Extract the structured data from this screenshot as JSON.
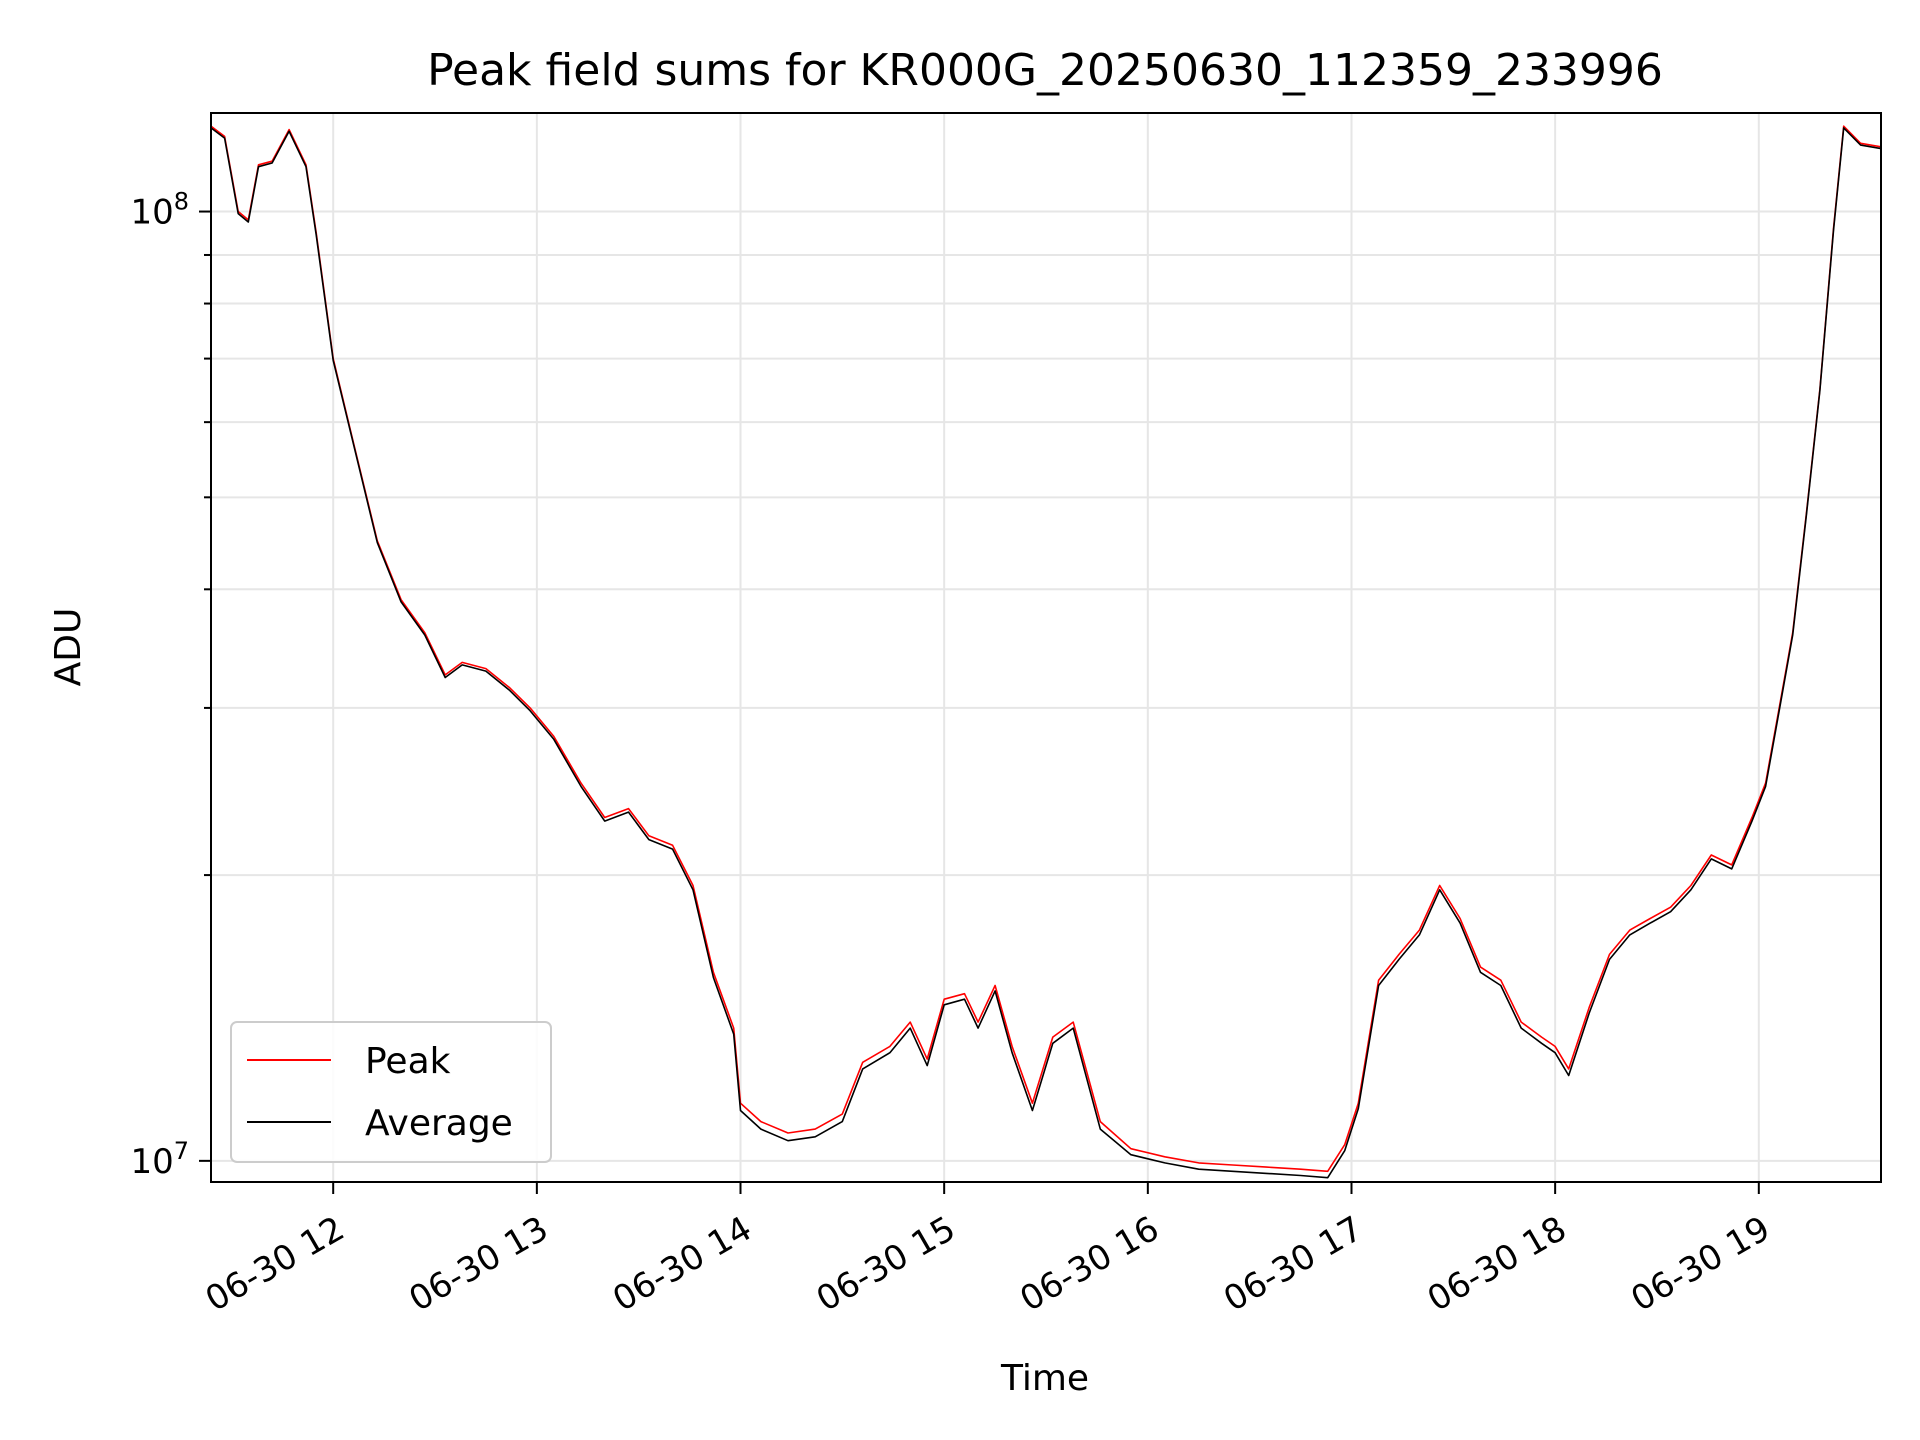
{
  "chart_data": {
    "type": "line",
    "title": "Peak field sums for KR000G_20250630_112359_233996",
    "xlabel": "Time",
    "ylabel": "ADU",
    "y_scale": "log",
    "ylim": [
      9500000,
      127000000
    ],
    "xlim": [
      "2025-06-30 11:24",
      "2025-06-30 19:36"
    ],
    "x_ticks": [
      "06-30 12",
      "06-30 13",
      "06-30 14",
      "06-30 15",
      "06-30 16",
      "06-30 17",
      "06-30 18",
      "06-30 19"
    ],
    "y_ticks": [
      {
        "value": 10000000,
        "base": "10",
        "exp": "7"
      },
      {
        "value": 100000000,
        "base": "10",
        "exp": "8"
      }
    ],
    "grid": true,
    "legend": {
      "position": "bottom-left",
      "entries": [
        "Peak",
        "Average"
      ]
    },
    "series": [
      {
        "name": "Peak",
        "color": "#ff0000",
        "points": [
          [
            "11:24",
            123000000
          ],
          [
            "11:28",
            120000000
          ],
          [
            "11:32",
            100000000
          ],
          [
            "11:35",
            98000000
          ],
          [
            "11:38",
            112000000
          ],
          [
            "11:42",
            113000000
          ],
          [
            "11:47",
            122000000
          ],
          [
            "11:52",
            112000000
          ],
          [
            "11:55",
            95000000
          ],
          [
            "12:00",
            70000000
          ],
          [
            "12:06",
            57000000
          ],
          [
            "12:13",
            45000000
          ],
          [
            "12:20",
            39000000
          ],
          [
            "12:27",
            36000000
          ],
          [
            "12:33",
            32500000
          ],
          [
            "12:38",
            33500000
          ],
          [
            "12:45",
            33000000
          ],
          [
            "12:52",
            31500000
          ],
          [
            "12:58",
            30000000
          ],
          [
            "13:05",
            28000000
          ],
          [
            "13:13",
            25000000
          ],
          [
            "13:20",
            23000000
          ],
          [
            "13:27",
            23500000
          ],
          [
            "13:33",
            22000000
          ],
          [
            "13:40",
            21500000
          ],
          [
            "13:46",
            19500000
          ],
          [
            "13:52",
            15800000
          ],
          [
            "13:58",
            13800000
          ],
          [
            "14:00",
            11500000
          ],
          [
            "14:06",
            11000000
          ],
          [
            "14:14",
            10700000
          ],
          [
            "14:22",
            10800000
          ],
          [
            "14:30",
            11200000
          ],
          [
            "14:36",
            12700000
          ],
          [
            "14:44",
            13200000
          ],
          [
            "14:50",
            14000000
          ],
          [
            "14:55",
            12800000
          ],
          [
            "15:00",
            14800000
          ],
          [
            "15:06",
            15000000
          ],
          [
            "15:10",
            14000000
          ],
          [
            "15:15",
            15300000
          ],
          [
            "15:20",
            13200000
          ],
          [
            "15:26",
            11500000
          ],
          [
            "15:32",
            13500000
          ],
          [
            "15:38",
            14000000
          ],
          [
            "15:46",
            11000000
          ],
          [
            "15:55",
            10300000
          ],
          [
            "16:05",
            10100000
          ],
          [
            "16:15",
            9950000
          ],
          [
            "16:25",
            9900000
          ],
          [
            "16:35",
            9850000
          ],
          [
            "16:45",
            9800000
          ],
          [
            "16:53",
            9750000
          ],
          [
            "16:58",
            10400000
          ],
          [
            "17:02",
            11500000
          ],
          [
            "17:08",
            15500000
          ],
          [
            "17:14",
            16500000
          ],
          [
            "17:20",
            17500000
          ],
          [
            "17:26",
            19500000
          ],
          [
            "17:32",
            18000000
          ],
          [
            "17:38",
            16000000
          ],
          [
            "17:44",
            15500000
          ],
          [
            "17:50",
            14000000
          ],
          [
            "17:56",
            13500000
          ],
          [
            "18:00",
            13200000
          ],
          [
            "18:04",
            12500000
          ],
          [
            "18:10",
            14500000
          ],
          [
            "18:16",
            16500000
          ],
          [
            "18:22",
            17500000
          ],
          [
            "18:28",
            18000000
          ],
          [
            "18:34",
            18500000
          ],
          [
            "18:40",
            19500000
          ],
          [
            "18:46",
            21000000
          ],
          [
            "18:52",
            20500000
          ],
          [
            "18:58",
            23000000
          ],
          [
            "19:02",
            25000000
          ],
          [
            "19:06",
            30000000
          ],
          [
            "19:10",
            36000000
          ],
          [
            "19:14",
            48000000
          ],
          [
            "19:18",
            65000000
          ],
          [
            "19:22",
            96000000
          ],
          [
            "19:25",
            123000000
          ],
          [
            "19:30",
            118000000
          ],
          [
            "19:36",
            117000000
          ]
        ]
      },
      {
        "name": "Average",
        "color": "#000000",
        "points": [
          [
            "11:24",
            122500000
          ],
          [
            "11:28",
            119500000
          ],
          [
            "11:32",
            99500000
          ],
          [
            "11:35",
            97500000
          ],
          [
            "11:38",
            111500000
          ],
          [
            "11:42",
            112500000
          ],
          [
            "11:47",
            121500000
          ],
          [
            "11:52",
            111500000
          ],
          [
            "11:55",
            94500000
          ],
          [
            "12:00",
            69700000
          ],
          [
            "12:06",
            56800000
          ],
          [
            "12:13",
            44800000
          ],
          [
            "12:20",
            38800000
          ],
          [
            "12:27",
            35800000
          ],
          [
            "12:33",
            32300000
          ],
          [
            "12:38",
            33300000
          ],
          [
            "12:45",
            32800000
          ],
          [
            "12:52",
            31300000
          ],
          [
            "12:58",
            29800000
          ],
          [
            "13:05",
            27800000
          ],
          [
            "13:13",
            24800000
          ],
          [
            "13:20",
            22800000
          ],
          [
            "13:27",
            23300000
          ],
          [
            "13:33",
            21800000
          ],
          [
            "13:40",
            21300000
          ],
          [
            "13:46",
            19300000
          ],
          [
            "13:52",
            15600000
          ],
          [
            "13:58",
            13600000
          ],
          [
            "14:00",
            11300000
          ],
          [
            "14:06",
            10800000
          ],
          [
            "14:14",
            10500000
          ],
          [
            "14:22",
            10600000
          ],
          [
            "14:30",
            11000000
          ],
          [
            "14:36",
            12500000
          ],
          [
            "14:44",
            13000000
          ],
          [
            "14:50",
            13800000
          ],
          [
            "14:55",
            12600000
          ],
          [
            "15:00",
            14600000
          ],
          [
            "15:06",
            14800000
          ],
          [
            "15:10",
            13800000
          ],
          [
            "15:15",
            15100000
          ],
          [
            "15:20",
            13000000
          ],
          [
            "15:26",
            11300000
          ],
          [
            "15:32",
            13300000
          ],
          [
            "15:38",
            13800000
          ],
          [
            "15:46",
            10800000
          ],
          [
            "15:55",
            10150000
          ],
          [
            "16:05",
            9950000
          ],
          [
            "16:15",
            9800000
          ],
          [
            "16:25",
            9750000
          ],
          [
            "16:35",
            9700000
          ],
          [
            "16:45",
            9650000
          ],
          [
            "16:53",
            9600000
          ],
          [
            "16:58",
            10250000
          ],
          [
            "17:02",
            11350000
          ],
          [
            "17:08",
            15300000
          ],
          [
            "17:14",
            16300000
          ],
          [
            "17:20",
            17300000
          ],
          [
            "17:26",
            19300000
          ],
          [
            "17:32",
            17800000
          ],
          [
            "17:38",
            15800000
          ],
          [
            "17:44",
            15300000
          ],
          [
            "17:50",
            13800000
          ],
          [
            "17:56",
            13300000
          ],
          [
            "18:00",
            13000000
          ],
          [
            "18:04",
            12300000
          ],
          [
            "18:10",
            14300000
          ],
          [
            "18:16",
            16300000
          ],
          [
            "18:22",
            17300000
          ],
          [
            "18:28",
            17800000
          ],
          [
            "18:34",
            18300000
          ],
          [
            "18:40",
            19300000
          ],
          [
            "18:46",
            20800000
          ],
          [
            "18:52",
            20300000
          ],
          [
            "18:58",
            22800000
          ],
          [
            "19:02",
            24800000
          ],
          [
            "19:06",
            29800000
          ],
          [
            "19:10",
            35800000
          ],
          [
            "19:14",
            47800000
          ],
          [
            "19:18",
            64800000
          ],
          [
            "19:22",
            95500000
          ],
          [
            "19:25",
            122500000
          ],
          [
            "19:30",
            117500000
          ],
          [
            "19:36",
            116500000
          ]
        ]
      }
    ]
  }
}
